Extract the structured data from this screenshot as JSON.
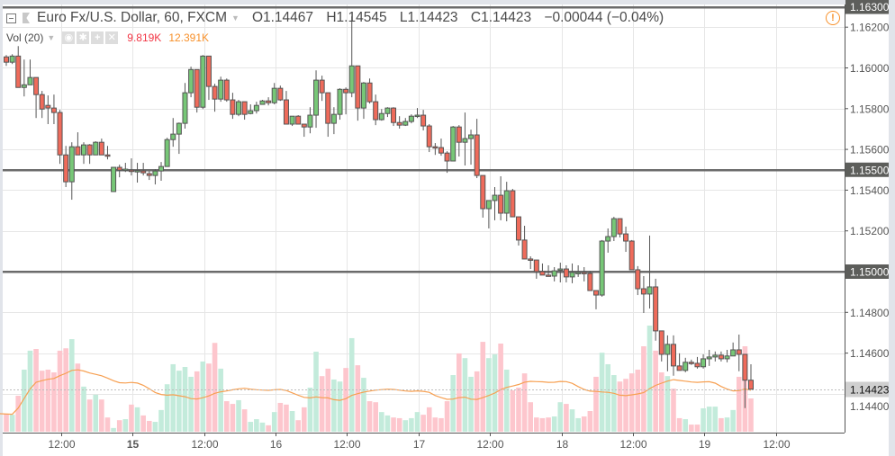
{
  "header": {
    "symbol_title": "Euro Fx/U.S. Dollar, 60, FXCM",
    "open": "O1.14467",
    "high": "H1.14545",
    "low": "L1.14423",
    "close": "C1.14423",
    "change": "−0.00044 (−0.04%)"
  },
  "volume_legend": {
    "label": "Vol (20)",
    "value": "9.819K",
    "ma_value": "12.391K",
    "value_color": "#f23645",
    "ma_color": "#f7902a"
  },
  "icons": [
    "collapse-icon",
    "flag-icon",
    "eye-icon",
    "gear-icon",
    "plus-icon",
    "close-icon",
    "warning-icon"
  ],
  "colors": {
    "up": "#77c777",
    "down": "#ef6b5b",
    "vol_up": "#c3ebdb",
    "vol_down": "#fdc6cd",
    "ma": "#f7a052",
    "level_line": "#6b6b6b"
  },
  "chart_data": {
    "type": "candlestick",
    "interval": "60",
    "ylim": [
      1.1428,
      1.1633
    ],
    "price_ticks": [
      "1.16200",
      "1.16000",
      "1.15800",
      "1.15600",
      "1.15400",
      "1.15200",
      "1.14800",
      "1.14600",
      "1.14400"
    ],
    "levels": [
      "1.16300",
      "1.15500",
      "1.15000"
    ],
    "last_price": "1.14423",
    "time_ticks": [
      {
        "label": "12:00",
        "bold": false
      },
      {
        "label": "15",
        "bold": true
      },
      {
        "label": "12:00",
        "bold": false
      },
      {
        "label": "16",
        "bold": false
      },
      {
        "label": "12:00",
        "bold": false
      },
      {
        "label": "17",
        "bold": false
      },
      {
        "label": "12:00",
        "bold": false
      },
      {
        "label": "18",
        "bold": false
      },
      {
        "label": "12:00",
        "bold": false
      },
      {
        "label": "19",
        "bold": false
      },
      {
        "label": "12:00",
        "bold": false
      }
    ],
    "volume_ma_length": 20,
    "ohlc": [
      [
        1.16054,
        1.16063,
        1.1601,
        1.16028
      ],
      [
        1.16028,
        1.16067,
        1.16019,
        1.16058
      ],
      [
        1.16058,
        1.16107,
        1.15904,
        1.15904
      ],
      [
        1.15904,
        1.16041,
        1.1586,
        1.15917
      ],
      [
        1.15917,
        1.16041,
        1.15917,
        1.15953
      ],
      [
        1.15953,
        1.15953,
        1.15754,
        1.15869
      ],
      [
        1.15869,
        1.15887,
        1.15754,
        1.15798
      ],
      [
        1.15816,
        1.15865,
        1.15724,
        1.15803
      ],
      [
        1.15803,
        1.15869,
        1.15724,
        1.15781
      ],
      [
        1.15781,
        1.15794,
        1.15529,
        1.15573
      ],
      [
        1.15573,
        1.15617,
        1.15415,
        1.15441
      ],
      [
        1.15441,
        1.15635,
        1.15353,
        1.15613
      ],
      [
        1.15613,
        1.15684,
        1.15573,
        1.15573
      ],
      [
        1.15573,
        1.15635,
        1.15529,
        1.15622
      ],
      [
        1.15622,
        1.15626,
        1.15529,
        1.15573
      ],
      [
        1.15573,
        1.1564,
        1.15573,
        1.15635
      ],
      [
        1.15635,
        1.15653,
        1.15573,
        1.15573
      ],
      [
        1.15573,
        1.15617,
        1.15551,
        1.15571
      ],
      [
        1.15393,
        1.15512,
        1.15393,
        1.15512
      ],
      [
        1.15512,
        1.15525,
        1.15463,
        1.15498
      ],
      [
        1.15498,
        1.15534,
        1.15489,
        1.15503
      ],
      [
        1.15498,
        1.15556,
        1.15472,
        1.15494
      ],
      [
        1.15494,
        1.15534,
        1.15437,
        1.15496
      ],
      [
        1.15494,
        1.15534,
        1.15472,
        1.15485
      ],
      [
        1.15481,
        1.15494,
        1.1545,
        1.15472
      ],
      [
        1.15472,
        1.15503,
        1.15428,
        1.15494
      ],
      [
        1.15494,
        1.15538,
        1.15446,
        1.15516
      ],
      [
        1.15516,
        1.15657,
        1.15516,
        1.15648
      ],
      [
        1.15648,
        1.15754,
        1.15613,
        1.15675
      ],
      [
        1.15675,
        1.15732,
        1.15578,
        1.15728
      ],
      [
        1.15728,
        1.15926,
        1.15702,
        1.15878
      ],
      [
        1.15878,
        1.16006,
        1.15856,
        1.15992
      ],
      [
        1.15992,
        1.15992,
        1.15781,
        1.15807
      ],
      [
        1.15807,
        1.16063,
        1.15798,
        1.16058
      ],
      [
        1.16058,
        1.16058,
        1.15843,
        1.15909
      ],
      [
        1.15909,
        1.15922,
        1.15785,
        1.15847
      ],
      [
        1.15847,
        1.15957,
        1.15834,
        1.1594
      ],
      [
        1.1594,
        1.15948,
        1.15834,
        1.15843
      ],
      [
        1.15843,
        1.15878,
        1.1575,
        1.15772
      ],
      [
        1.15772,
        1.15843,
        1.15763,
        1.15834
      ],
      [
        1.15834,
        1.15834,
        1.15746,
        1.15772
      ],
      [
        1.15776,
        1.15821,
        1.15772,
        1.1579
      ],
      [
        1.1579,
        1.15834,
        1.15776,
        1.15816
      ],
      [
        1.15821,
        1.15843,
        1.15821,
        1.15838
      ],
      [
        1.15838,
        1.15856,
        1.15816,
        1.15829
      ],
      [
        1.15829,
        1.15926,
        1.15821,
        1.159
      ],
      [
        1.159,
        1.15913,
        1.15838,
        1.15843
      ],
      [
        1.15843,
        1.15887,
        1.15724,
        1.15724
      ],
      [
        1.15724,
        1.15763,
        1.15715,
        1.15763
      ],
      [
        1.15763,
        1.15768,
        1.15724,
        1.15724
      ],
      [
        1.15724,
        1.15724,
        1.15662,
        1.1571
      ],
      [
        1.1571,
        1.15807,
        1.15679,
        1.15768
      ],
      [
        1.15768,
        1.15988,
        1.15706,
        1.1594
      ],
      [
        1.1594,
        1.15962,
        1.15838,
        1.15878
      ],
      [
        1.15878,
        1.15878,
        1.15662,
        1.15728
      ],
      [
        1.15728,
        1.15807,
        1.15675,
        1.15772
      ],
      [
        1.15772,
        1.159,
        1.15746,
        1.15895
      ],
      [
        1.15895,
        1.15904,
        1.15772,
        1.15878
      ],
      [
        1.15878,
        1.16253,
        1.15856,
        1.1601
      ],
      [
        1.1601,
        1.1601,
        1.15741,
        1.15803
      ],
      [
        1.15803,
        1.15931,
        1.1575,
        1.15926
      ],
      [
        1.15926,
        1.15948,
        1.15825,
        1.15834
      ],
      [
        1.15834,
        1.15869,
        1.15719,
        1.15746
      ],
      [
        1.15746,
        1.15798,
        1.15741,
        1.15776
      ],
      [
        1.15776,
        1.15807,
        1.15759,
        1.15803
      ],
      [
        1.15803,
        1.15807,
        1.15715,
        1.15732
      ],
      [
        1.15732,
        1.15763,
        1.15702,
        1.15719
      ],
      [
        1.15719,
        1.15754,
        1.15715,
        1.15737
      ],
      [
        1.15737,
        1.15772,
        1.15728,
        1.15763
      ],
      [
        1.15763,
        1.15803,
        1.15754,
        1.15768
      ],
      [
        1.15768,
        1.15794,
        1.15693,
        1.15715
      ],
      [
        1.15715,
        1.15724,
        1.15587,
        1.15613
      ],
      [
        1.15613,
        1.15631,
        1.15573,
        1.15609
      ],
      [
        1.15609,
        1.15653,
        1.15569,
        1.15582
      ],
      [
        1.15582,
        1.15591,
        1.15485,
        1.15543
      ],
      [
        1.15543,
        1.15715,
        1.15543,
        1.1571
      ],
      [
        1.1571,
        1.15719,
        1.15565,
        1.15635
      ],
      [
        1.15635,
        1.15781,
        1.15521,
        1.15653
      ],
      [
        1.15653,
        1.15697,
        1.15525,
        1.15671
      ],
      [
        1.15671,
        1.1575,
        1.15459,
        1.15472
      ],
      [
        1.15472,
        1.15472,
        1.15265,
        1.15309
      ],
      [
        1.15309,
        1.15349,
        1.15212,
        1.15349
      ],
      [
        1.15349,
        1.15415,
        1.15252,
        1.15375
      ],
      [
        1.15375,
        1.15468,
        1.15252,
        1.15287
      ],
      [
        1.15287,
        1.15441,
        1.15247,
        1.15397
      ],
      [
        1.15397,
        1.15406,
        1.15269,
        1.15269
      ],
      [
        1.15269,
        1.15269,
        1.15128,
        1.15155
      ],
      [
        1.15155,
        1.15225,
        1.15062,
        1.15062
      ],
      [
        1.15062,
        1.15075,
        1.15013,
        1.15057
      ],
      [
        1.15057,
        1.15057,
        1.14965,
        1.15
      ],
      [
        1.15,
        1.1504,
        1.14983,
        1.14983
      ],
      [
        1.14983,
        1.15031,
        1.14978,
        1.14978
      ],
      [
        1.14978,
        1.15022,
        1.14952,
        1.15004
      ],
      [
        1.15013,
        1.15044,
        1.14947,
        1.15013
      ],
      [
        1.15013,
        1.15031,
        1.14947,
        1.14974
      ],
      [
        1.14974,
        1.1504,
        1.14943,
        1.14996
      ],
      [
        1.14996,
        1.15031,
        1.14974,
        1.14996
      ],
      [
        1.14996,
        1.15022,
        1.14952,
        1.14994
      ],
      [
        1.14991,
        1.15004,
        1.14907,
        1.14907
      ],
      [
        1.14907,
        1.14907,
        1.14815,
        1.14885
      ],
      [
        1.14885,
        1.15155,
        1.14877,
        1.1515
      ],
      [
        1.1515,
        1.15212,
        1.15093,
        1.15172
      ],
      [
        1.15172,
        1.15269,
        1.1515,
        1.1526
      ],
      [
        1.1526,
        1.1526,
        1.15168,
        1.15185
      ],
      [
        1.15185,
        1.15221,
        1.15097,
        1.1515
      ],
      [
        1.1515,
        1.15155,
        1.15009,
        1.15009
      ],
      [
        1.15009,
        1.15027,
        1.14885,
        1.14916
      ],
      [
        1.14916,
        1.14978,
        1.14797,
        1.1489
      ],
      [
        1.1489,
        1.15177,
        1.14819,
        1.14925
      ],
      [
        1.14925,
        1.14965,
        1.14661,
        1.14709
      ],
      [
        1.14709,
        1.14709,
        1.14559,
        1.14594
      ],
      [
        1.14594,
        1.14687,
        1.14511,
        1.14643
      ],
      [
        1.14643,
        1.14687,
        1.14489,
        1.14537
      ],
      [
        1.14537,
        1.14599,
        1.14515,
        1.14515
      ],
      [
        1.14515,
        1.14577,
        1.14506,
        1.14555
      ],
      [
        1.14555,
        1.14568,
        1.14542,
        1.1455
      ],
      [
        1.1455,
        1.14581,
        1.14524,
        1.14533
      ],
      [
        1.14533,
        1.14594,
        1.14524,
        1.14572
      ],
      [
        1.14572,
        1.14616,
        1.14537,
        1.14581
      ],
      [
        1.14581,
        1.14608,
        1.14559,
        1.1459
      ],
      [
        1.1459,
        1.14608,
        1.14559,
        1.14572
      ],
      [
        1.14572,
        1.14616,
        1.14555,
        1.14586
      ],
      [
        1.14586,
        1.14652,
        1.14586,
        1.14616
      ],
      [
        1.14616,
        1.14691,
        1.14511,
        1.14594
      ],
      [
        1.14594,
        1.14594,
        1.1433,
        1.14467
      ],
      [
        1.14467,
        1.14545,
        1.14423,
        1.14423
      ]
    ],
    "volume_k": [
      5.3,
      5.0,
      10.6,
      18.3,
      23.9,
      24.4,
      18.0,
      18.3,
      17.5,
      23.9,
      24.6,
      27.3,
      20.1,
      13.3,
      9.5,
      10.9,
      9.5,
      4.2,
      1.1,
      3.4,
      3.7,
      8.0,
      7.2,
      4.8,
      3.2,
      2.9,
      6.4,
      14.0,
      19.9,
      18.0,
      19.1,
      16.2,
      17.8,
      20.7,
      20.1,
      26.2,
      18.6,
      9.0,
      8.2,
      9.3,
      6.6,
      2.9,
      3.7,
      2.7,
      1.9,
      5.8,
      8.5,
      8.0,
      6.1,
      3.4,
      7.2,
      13.0,
      23.6,
      16.4,
      18.6,
      15.4,
      14.8,
      18.8,
      27.6,
      19.6,
      15.9,
      9.0,
      8.7,
      5.8,
      4.8,
      4.2,
      4.0,
      3.4,
      4.0,
      5.8,
      5.0,
      7.2,
      4.2,
      4.0,
      9.0,
      16.7,
      23.1,
      21.7,
      16.2,
      17.8,
      26.5,
      21.7,
      22.8,
      26.0,
      18.3,
      12.2,
      13.0,
      17.2,
      8.7,
      4.2,
      4.0,
      4.2,
      4.5,
      8.7,
      8.2,
      6.6,
      4.0,
      4.5,
      6.1,
      16.2,
      23.3,
      19.9,
      16.7,
      14.8,
      15.6,
      17.2,
      18.3,
      25.2,
      31.3,
      23.9,
      17.5,
      16.4,
      12.7,
      4.0,
      3.7,
      2.1,
      2.1,
      6.9,
      7.4,
      7.4,
      4.0,
      4.2,
      6.4,
      16.2,
      25.2,
      9.819
    ]
  }
}
